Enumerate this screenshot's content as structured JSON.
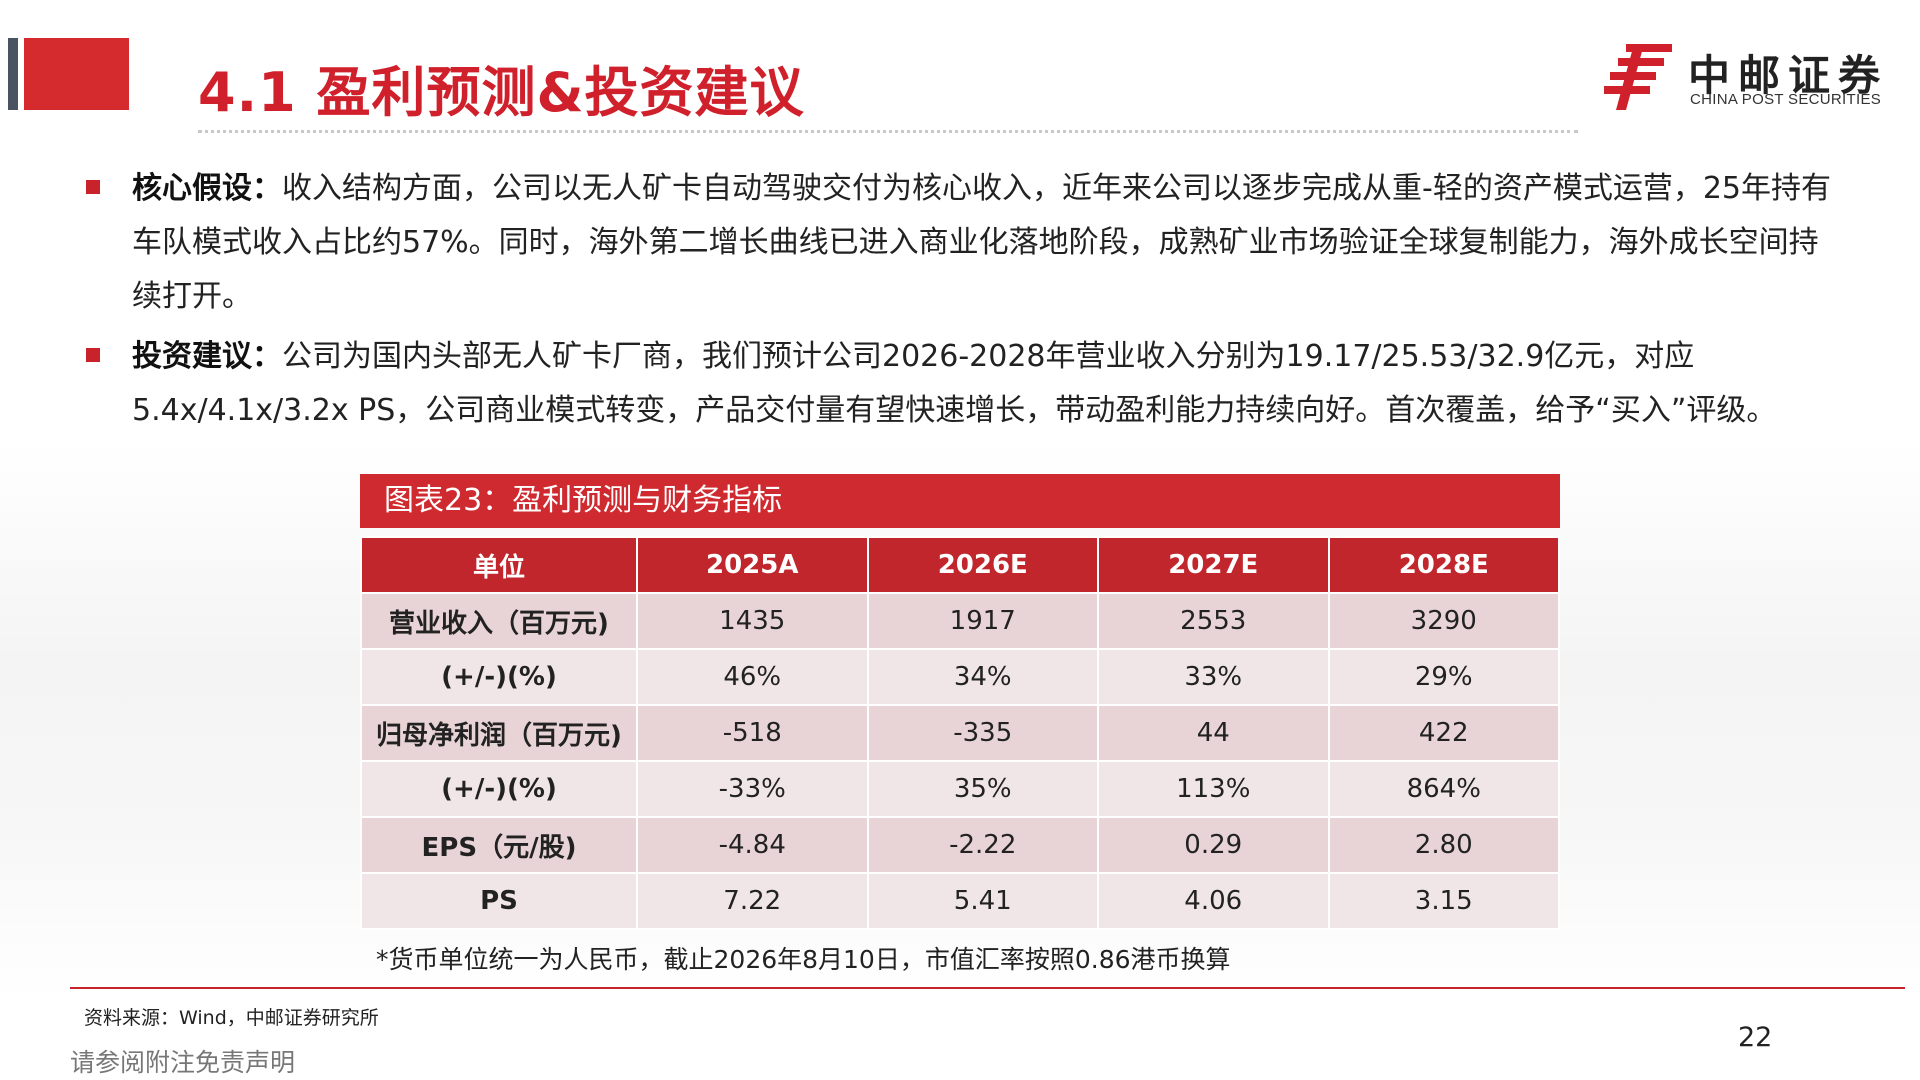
{
  "header": {
    "title": "4.1 盈利预测&投资建议",
    "logo_cn": "中邮证券",
    "logo_en": "CHINA POST SECURITIES",
    "accent_color": "#d0202b"
  },
  "bullets": [
    {
      "label": "核心假设：",
      "text": "收入结构方面，公司以无人矿卡自动驾驶交付为核心收入，近年来公司以逐步完成从重-轻的资产模式运营，25年持有车队模式收入占比约57%。同时，海外第二增长曲线已进入商业化落地阶段，成熟矿业市场验证全球复制能力，海外成长空间持续打开。"
    },
    {
      "label": "投资建议：",
      "text": "公司为国内头部无人矿卡厂商，我们预计公司2026-2028年营业收入分别为19.17/25.53/32.9亿元，对应5.4x/4.1x/3.2x PS，公司商业模式转变，产品交付量有望快速增长，带动盈利能力持续向好。首次覆盖，给予“买入”评级。"
    }
  ],
  "table": {
    "caption": "图表23：盈利预测与财务指标",
    "headers": [
      "单位",
      "2025A",
      "2026E",
      "2027E",
      "2028E"
    ],
    "rows": [
      [
        "营业收入（百万元)",
        "1435",
        "1917",
        "2553",
        "3290"
      ],
      [
        "(+/-)(%)",
        "46%",
        "34%",
        "33%",
        "29%"
      ],
      [
        "归母净利润（百万元)",
        "-518",
        "-335",
        "44",
        "422"
      ],
      [
        "(+/-)(%)",
        "-33%",
        "35%",
        "113%",
        "864%"
      ],
      [
        "EPS（元/股)",
        "-4.84",
        "-2.22",
        "0.29",
        "2.80"
      ],
      [
        "PS",
        "7.22",
        "5.41",
        "4.06",
        "3.15"
      ]
    ],
    "note": "*货币单位统一为人民币，截止2026年8月10日，市值汇率按照0.86港币换算"
  },
  "footer": {
    "source": "资料来源：Wind，中邮证券研究所",
    "page_number": "22",
    "disclaimer": "请参阅附注免责声明"
  }
}
